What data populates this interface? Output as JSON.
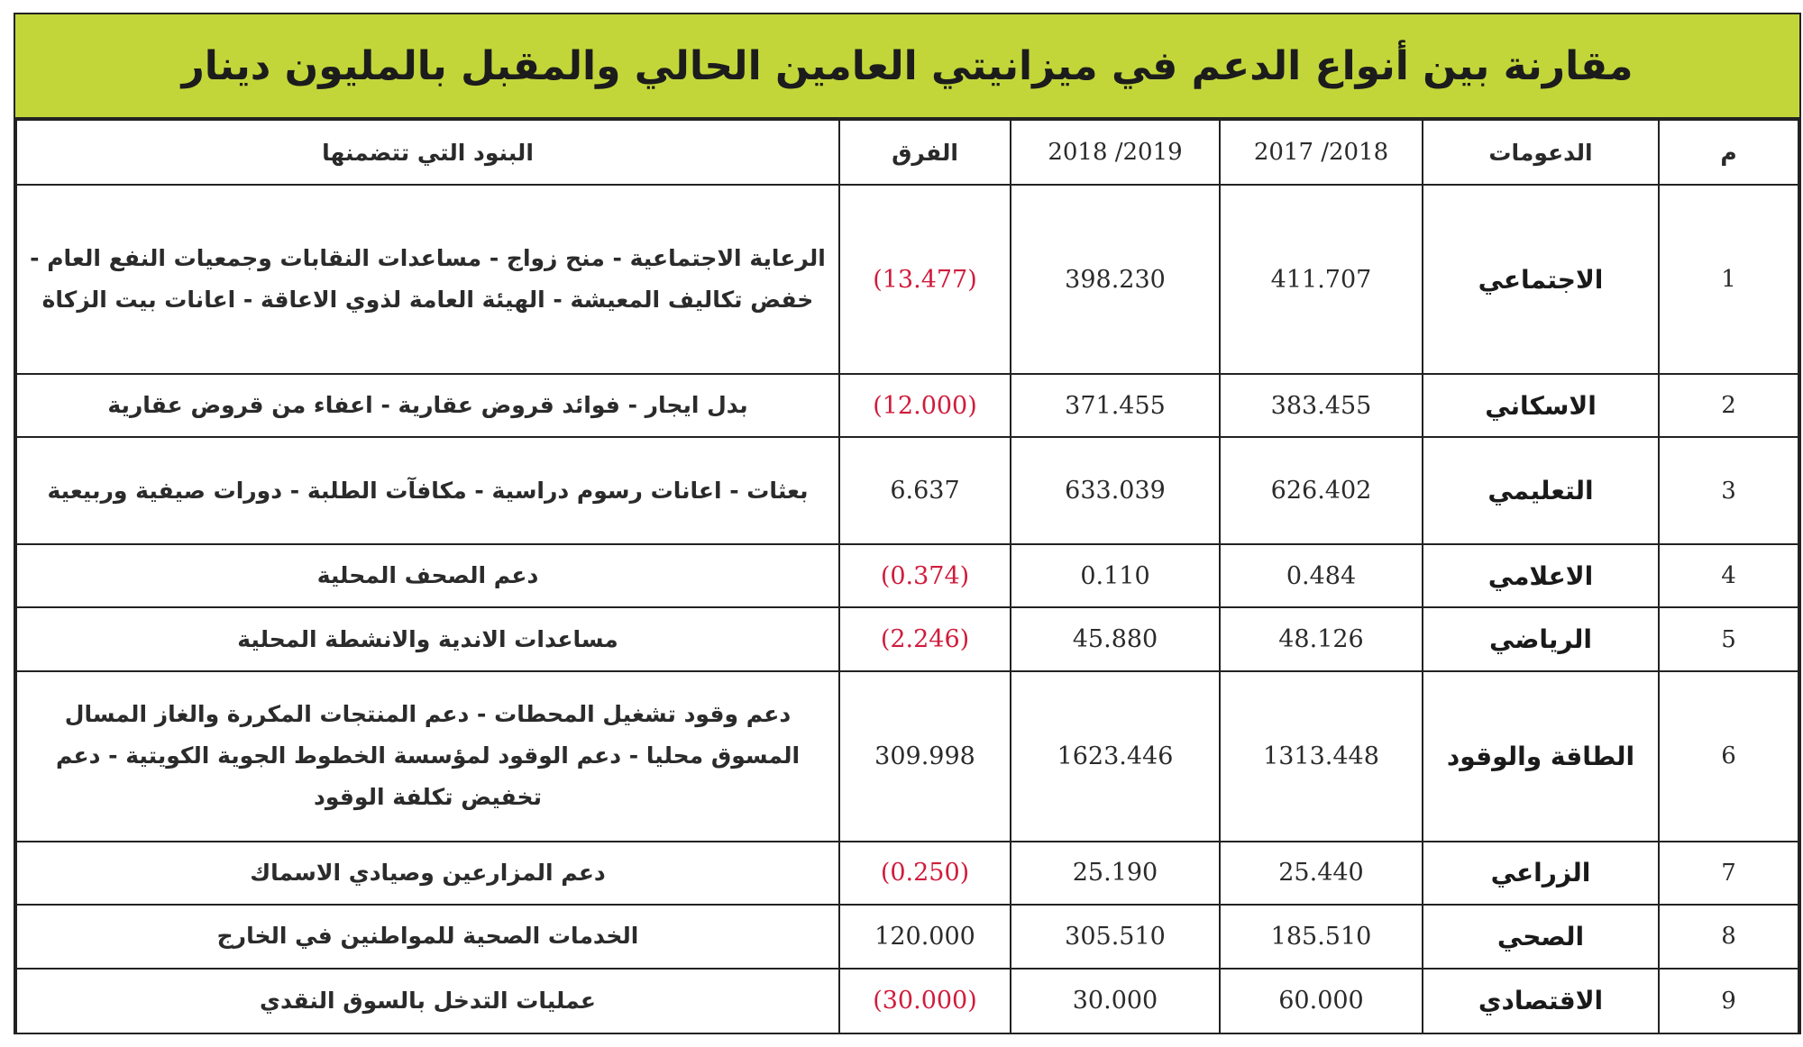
{
  "title": "مقارنة بين أنواع الدعم في ميزانيتي العامين الحالي والمقبل بالمليون دينار",
  "headers": {
    "index": "م",
    "type": "الدعومات",
    "y2017": "2017 /2018",
    "y2018": "2018 /2019",
    "diff": "الفرق",
    "items": "البنود التي تتضمنها"
  },
  "rows": [
    {
      "index": "1",
      "type": "الاجتماعي",
      "y2017": "411.707",
      "y2018": "398.230",
      "diff": "(13.477)",
      "negative": true,
      "items": "الرعاية الاجتماعية - منح زواج - مساعدات النقابات وجمعيات النفع العام - خفض تكاليف المعيشة - الهيئة العامة لذوي الاعاقة - اعانات بيت الزكاة"
    },
    {
      "index": "2",
      "type": "الاسكاني",
      "y2017": "383.455",
      "y2018": "371.455",
      "diff": "(12.000)",
      "negative": true,
      "items": "بدل ايجار - فوائد قروض عقارية - اعفاء من قروض عقارية"
    },
    {
      "index": "3",
      "type": "التعليمي",
      "y2017": "626.402",
      "y2018": "633.039",
      "diff": "6.637",
      "negative": false,
      "items": "بعثات - اعانات رسوم دراسية - مكافآت الطلبة - دورات صيفية وربيعية"
    },
    {
      "index": "4",
      "type": "الاعلامي",
      "y2017": "0.484",
      "y2018": "0.110",
      "diff": "(0.374)",
      "negative": true,
      "items": "دعم الصحف المحلية"
    },
    {
      "index": "5",
      "type": "الرياضي",
      "y2017": "48.126",
      "y2018": "45.880",
      "diff": "(2.246)",
      "negative": true,
      "items": "مساعدات الاندية والانشطة المحلية"
    },
    {
      "index": "6",
      "type": "الطاقة والوقود",
      "y2017": "1313.448",
      "y2018": "1623.446",
      "diff": "309.998",
      "negative": false,
      "items": "دعم وقود تشغيل المحطات - دعم المنتجات المكررة والغاز المسال المسوق محليا - دعم الوقود لمؤسسة الخطوط الجوية الكويتية - دعم تخفيض تكلفة الوقود"
    },
    {
      "index": "7",
      "type": "الزراعي",
      "y2017": "25.440",
      "y2018": "25.190",
      "diff": "(0.250)",
      "negative": true,
      "items": "دعم المزارعين وصيادي الاسماك"
    },
    {
      "index": "8",
      "type": "الصحي",
      "y2017": "185.510",
      "y2018": "305.510",
      "diff": "120.000",
      "negative": false,
      "items": "الخدمات الصحية للمواطنين في الخارج"
    },
    {
      "index": "9",
      "type": "الاقتصادي",
      "y2017": "60.000",
      "y2018": "30.000",
      "diff": "(30.000)",
      "negative": true,
      "items": "عمليات التدخل بالسوق النقدي"
    }
  ],
  "colors": {
    "title_bg": "#c2d63a",
    "negative": "#d01c3c",
    "border": "#222222"
  }
}
